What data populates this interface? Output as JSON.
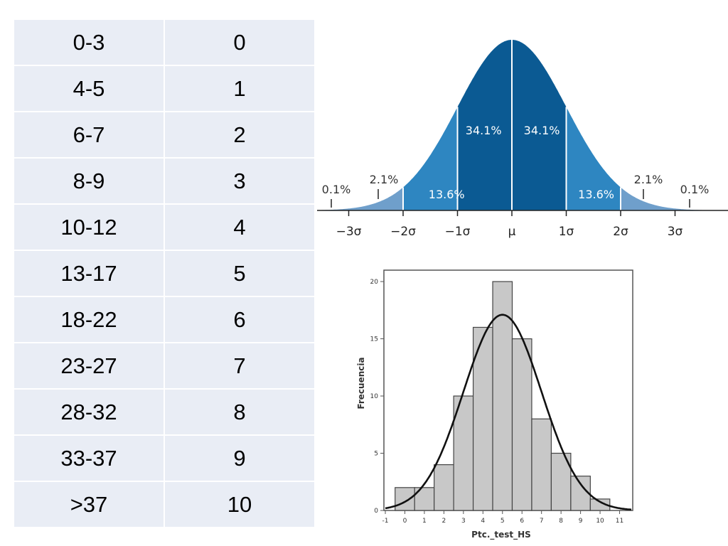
{
  "table": {
    "rows": [
      [
        "0-3",
        "0"
      ],
      [
        "4-5",
        "1"
      ],
      [
        "6-7",
        "2"
      ],
      [
        "8-9",
        "3"
      ],
      [
        "10-12",
        "4"
      ],
      [
        "13-17",
        "5"
      ],
      [
        "18-22",
        "6"
      ],
      [
        "23-27",
        "7"
      ],
      [
        "28-32",
        "8"
      ],
      [
        "33-37",
        "9"
      ],
      [
        ">37",
        "10"
      ]
    ]
  },
  "chart_data": [
    {
      "type": "area",
      "title": "",
      "xlabel": "",
      "ylabel": "",
      "x_ticks": [
        "−3σ",
        "−2σ",
        "−1σ",
        "μ",
        "1σ",
        "2σ",
        "3σ"
      ],
      "xlim": [
        -3.5,
        3.5
      ],
      "bands": [
        {
          "from": -3,
          "to": -2,
          "label": "2.1%",
          "value": 2.1
        },
        {
          "from": -2,
          "to": -1,
          "label": "13.6%",
          "value": 13.6
        },
        {
          "from": -1,
          "to": 0,
          "label": "34.1%",
          "value": 34.1
        },
        {
          "from": 0,
          "to": 1,
          "label": "34.1%",
          "value": 34.1
        },
        {
          "from": 1,
          "to": 2,
          "label": "13.6%",
          "value": 13.6
        },
        {
          "from": 2,
          "to": 3,
          "label": "2.1%",
          "value": 2.1
        }
      ],
      "tails": [
        {
          "side": "left",
          "label": "0.1%",
          "value": 0.1
        },
        {
          "side": "right",
          "label": "0.1%",
          "value": 0.1
        }
      ],
      "colors": {
        "outer": "#6f9fcb",
        "middle": "#2e86c1",
        "inner": "#0b5a93",
        "label_dark": "#333333",
        "label_light": "#ffffff"
      }
    },
    {
      "type": "bar",
      "title": "",
      "xlabel": "Ptc._test_HS",
      "ylabel": "Frecuencia",
      "x_ticks": [
        "-1",
        "0",
        "1",
        "2",
        "3",
        "4",
        "5",
        "6",
        "7",
        "8",
        "9",
        "10",
        "11"
      ],
      "y_ticks": [
        "0",
        "5",
        "10",
        "15",
        "20"
      ],
      "xlim": [
        -1,
        11.6
      ],
      "ylim": [
        0,
        20.5
      ],
      "bins": [
        {
          "x0": -0.5,
          "x1": 0.5,
          "value": 2
        },
        {
          "x0": 0.5,
          "x1": 1.5,
          "value": 2
        },
        {
          "x0": 1.5,
          "x1": 2.5,
          "value": 4
        },
        {
          "x0": 2.5,
          "x1": 3.5,
          "value": 10
        },
        {
          "x0": 3.5,
          "x1": 4.5,
          "value": 16
        },
        {
          "x0": 4.5,
          "x1": 5.5,
          "value": 20
        },
        {
          "x0": 5.5,
          "x1": 6.5,
          "value": 15
        },
        {
          "x0": 6.5,
          "x1": 7.5,
          "value": 8
        },
        {
          "x0": 7.5,
          "x1": 8.5,
          "value": 5
        },
        {
          "x0": 8.5,
          "x1": 9.5,
          "value": 3
        },
        {
          "x0": 9.5,
          "x1": 10.5,
          "value": 1
        }
      ],
      "normal_fit": {
        "mean": 5.0,
        "sd": 2.0,
        "peak": 17.1
      },
      "colors": {
        "bar_fill": "#c8c8c8",
        "bar_stroke": "#444444",
        "curve": "#111111"
      }
    }
  ]
}
